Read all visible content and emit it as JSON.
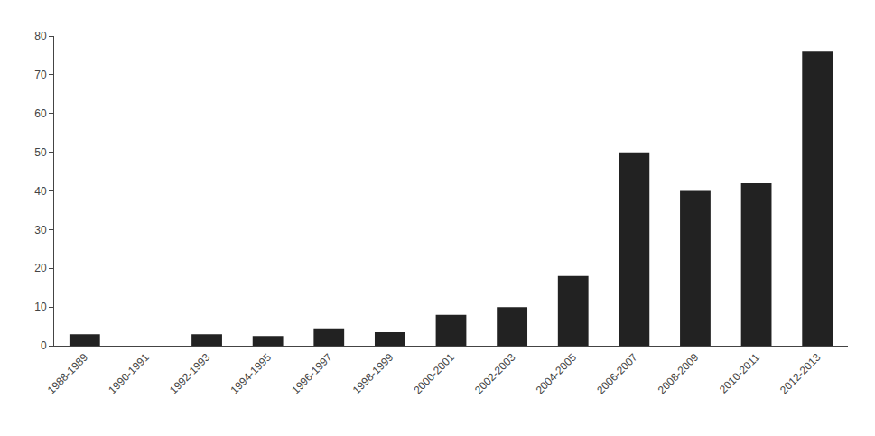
{
  "chart_data": {
    "type": "bar",
    "categories": [
      "1988-1989",
      "1990-1991",
      "1992-1993",
      "1994-1995",
      "1996-1997",
      "1998-1999",
      "2000-2001",
      "2002-2003",
      "2004-2005",
      "2006-2007",
      "2008-2009",
      "2010-2011",
      "2012-2013"
    ],
    "values": [
      3,
      0,
      3,
      2.5,
      4.5,
      3.5,
      8,
      10,
      18,
      50,
      40,
      42,
      76
    ],
    "color": "#222222",
    "ylim": [
      0,
      80
    ],
    "yticks": [
      0,
      10,
      20,
      30,
      40,
      50,
      60,
      70,
      80
    ],
    "grid": false
  }
}
